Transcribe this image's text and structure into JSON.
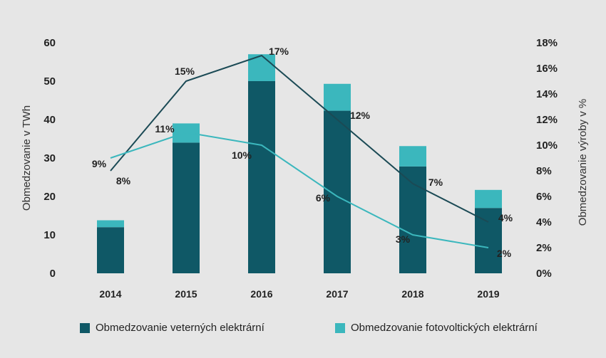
{
  "chart_data": {
    "type": "bar",
    "categories": [
      "2014",
      "2015",
      "2016",
      "2017",
      "2018",
      "2019"
    ],
    "y_left": {
      "label": "Obmedzovanie v TWh",
      "ticks": [
        "0",
        "10",
        "20",
        "30",
        "40",
        "50",
        "60"
      ],
      "range": [
        0,
        60
      ]
    },
    "y_right": {
      "label": "Obmedzovanie výroby v %",
      "ticks": [
        "0%",
        "2%",
        "4%",
        "6%",
        "8%",
        "10%",
        "12%",
        "14%",
        "16%",
        "18%"
      ],
      "range": [
        0,
        18
      ]
    },
    "stacked_series": [
      {
        "name": "Obmedzovanie veterných elektrární",
        "color": "#0f5866",
        "values": [
          12,
          34,
          50,
          42.3,
          27.8,
          17
        ]
      },
      {
        "name": "Obmedzovanie fotovoltických elektrární",
        "color": "#3bb7bd",
        "values": [
          1.8,
          5,
          7,
          7,
          5.3,
          4.7
        ]
      }
    ],
    "line_series": [
      {
        "color": "#1b4a55",
        "values": [
          8,
          15,
          17,
          12,
          7,
          4
        ],
        "labels": [
          "8%",
          "15%",
          "17%",
          "12%",
          "7%",
          "4%"
        ]
      },
      {
        "color": "#3bb7bd",
        "values": [
          9,
          11,
          10,
          6,
          3,
          2
        ],
        "labels": [
          "9%",
          "11%",
          "10%",
          "6%",
          "3%",
          "2%"
        ]
      }
    ],
    "legend_position": "bottom",
    "grid": false
  }
}
